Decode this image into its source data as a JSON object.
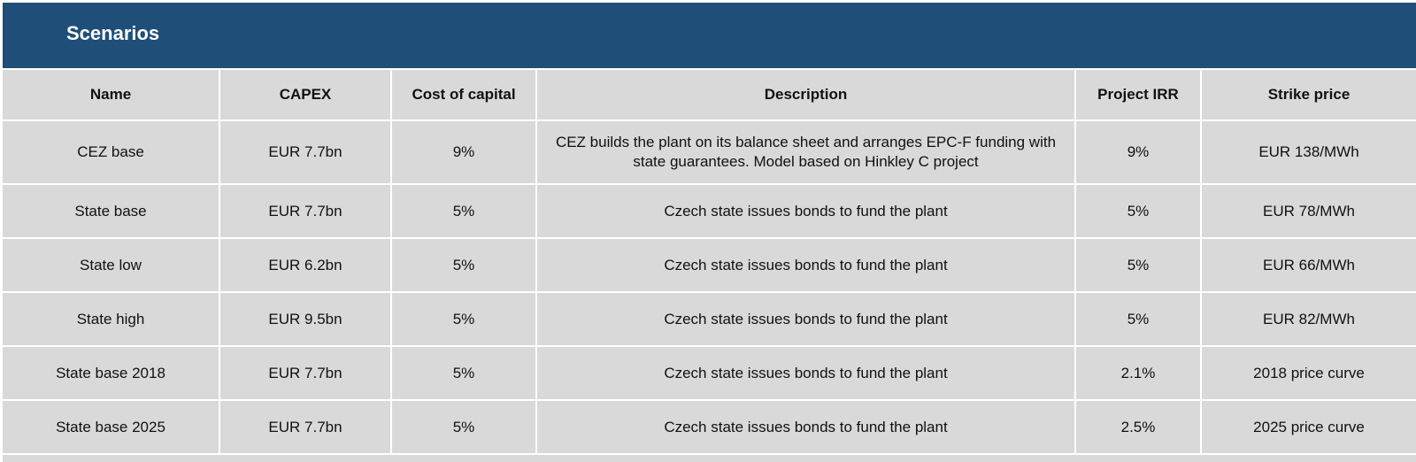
{
  "title": "Scenarios",
  "columns": [
    "Name",
    "CAPEX",
    "Cost of capital",
    "Description",
    "Project IRR",
    "Strike price"
  ],
  "rows": [
    {
      "name": "CEZ base",
      "capex": "EUR 7.7bn",
      "cost_of_capital": "9%",
      "description": "CEZ builds the plant on its balance sheet and arranges EPC-F funding with state guarantees. Model based on Hinkley C project",
      "project_irr": "9%",
      "strike_price": "EUR 138/MWh"
    },
    {
      "name": "State base",
      "capex": "EUR 7.7bn",
      "cost_of_capital": "5%",
      "description": "Czech state issues bonds to fund the plant",
      "project_irr": "5%",
      "strike_price": "EUR 78/MWh"
    },
    {
      "name": "State low",
      "capex": "EUR 6.2bn",
      "cost_of_capital": "5%",
      "description": "Czech state issues bonds to fund the plant",
      "project_irr": "5%",
      "strike_price": "EUR 66/MWh"
    },
    {
      "name": "State high",
      "capex": "EUR 9.5bn",
      "cost_of_capital": "5%",
      "description": "Czech state issues bonds to fund the plant",
      "project_irr": "5%",
      "strike_price": "EUR 82/MWh"
    },
    {
      "name": "State base 2018",
      "capex": "EUR 7.7bn",
      "cost_of_capital": "5%",
      "description": "Czech state issues bonds to fund the plant",
      "project_irr": "2.1%",
      "strike_price": "2018 price curve"
    },
    {
      "name": "State base 2025",
      "capex": "EUR 7.7bn",
      "cost_of_capital": "5%",
      "description": "Czech state issues bonds to fund the plant",
      "project_irr": "2.5%",
      "strike_price": "2025 price curve"
    }
  ],
  "colors": {
    "header_background": "#1f4e79",
    "header_text": "#ffffff",
    "cell_background": "#d9d9d9",
    "grid_lines": "#ffffff"
  }
}
